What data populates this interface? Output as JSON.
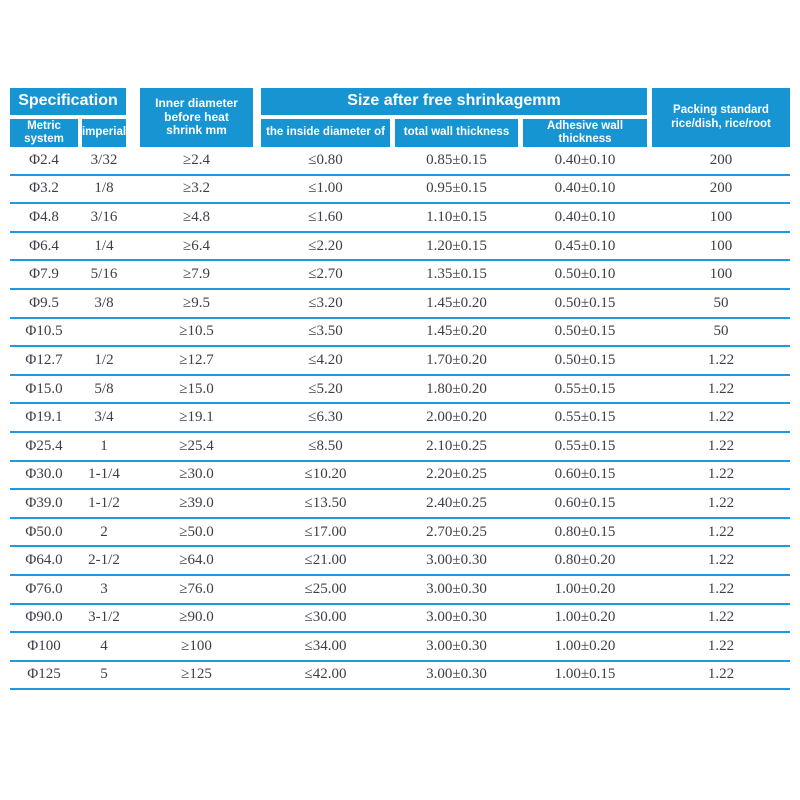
{
  "colors": {
    "header_blue": "#1794d2",
    "row_line_blue": "#1e9ade",
    "body_text": "#3d3e48",
    "header_text": "#ffffff",
    "background": "#ffffff"
  },
  "table": {
    "header": {
      "specification": "Specification",
      "metric_system": "Metric system",
      "imperial": "imperial",
      "inner_diameter": "Inner diameter before heat shrink mm",
      "size_after_free_shrinkage": "Size after free shrinkagemm",
      "inside_diameter": "the inside diameter of",
      "total_wall_thickness": "total wall thickness",
      "adhesive_wall_thickness": "Adhesive wall thickness",
      "packing_standard_line1": "Packing standard",
      "packing_standard_line2": "rice/dish, rice/root"
    },
    "columns": [
      "metric-system",
      "imperial",
      "inner-diameter-before-shrink",
      "inside-diameter-after",
      "total-wall-thickness",
      "adhesive-wall-thickness",
      "packing-standard"
    ],
    "rows": [
      [
        "Φ2.4",
        "3/32",
        "≥2.4",
        "≤0.80",
        "0.85±0.15",
        "0.40±0.10",
        "200"
      ],
      [
        "Φ3.2",
        "1/8",
        "≥3.2",
        "≤1.00",
        "0.95±0.15",
        "0.40±0.10",
        "200"
      ],
      [
        "Φ4.8",
        "3/16",
        "≥4.8",
        "≤1.60",
        "1.10±0.15",
        "0.40±0.10",
        "100"
      ],
      [
        "Φ6.4",
        "1/4",
        "≥6.4",
        "≤2.20",
        "1.20±0.15",
        "0.45±0.10",
        "100"
      ],
      [
        "Φ7.9",
        "5/16",
        "≥7.9",
        "≤2.70",
        "1.35±0.15",
        "0.50±0.10",
        "100"
      ],
      [
        "Φ9.5",
        "3/8",
        "≥9.5",
        "≤3.20",
        "1.45±0.20",
        "0.50±0.15",
        "50"
      ],
      [
        "Φ10.5",
        "",
        "≥10.5",
        "≤3.50",
        "1.45±0.20",
        "0.50±0.15",
        "50"
      ],
      [
        "Φ12.7",
        "1/2",
        "≥12.7",
        "≤4.20",
        "1.70±0.20",
        "0.50±0.15",
        "1.22"
      ],
      [
        "Φ15.0",
        "5/8",
        "≥15.0",
        "≤5.20",
        "1.80±0.20",
        "0.55±0.15",
        "1.22"
      ],
      [
        "Φ19.1",
        "3/4",
        "≥19.1",
        "≤6.30",
        "2.00±0.20",
        "0.55±0.15",
        "1.22"
      ],
      [
        "Φ25.4",
        "1",
        "≥25.4",
        "≤8.50",
        "2.10±0.25",
        "0.55±0.15",
        "1.22"
      ],
      [
        "Φ30.0",
        "1-1/4",
        "≥30.0",
        "≤10.20",
        "2.20±0.25",
        "0.60±0.15",
        "1.22"
      ],
      [
        "Φ39.0",
        "1-1/2",
        "≥39.0",
        "≤13.50",
        "2.40±0.25",
        "0.60±0.15",
        "1.22"
      ],
      [
        "Φ50.0",
        "2",
        "≥50.0",
        "≤17.00",
        "2.70±0.25",
        "0.80±0.15",
        "1.22"
      ],
      [
        "Φ64.0",
        "2-1/2",
        "≥64.0",
        "≤21.00",
        "3.00±0.30",
        "0.80±0.20",
        "1.22"
      ],
      [
        "Φ76.0",
        "3",
        "≥76.0",
        "≤25.00",
        "3.00±0.30",
        "1.00±0.20",
        "1.22"
      ],
      [
        "Φ90.0",
        "3-1/2",
        "≥90.0",
        "≤30.00",
        "3.00±0.30",
        "1.00±0.20",
        "1.22"
      ],
      [
        "Φ100",
        "4",
        "≥100",
        "≤34.00",
        "3.00±0.30",
        "1.00±0.20",
        "1.22"
      ],
      [
        "Φ125",
        "5",
        "≥125",
        "≤42.00",
        "3.00±0.30",
        "1.00±0.15",
        "1.22"
      ]
    ]
  }
}
